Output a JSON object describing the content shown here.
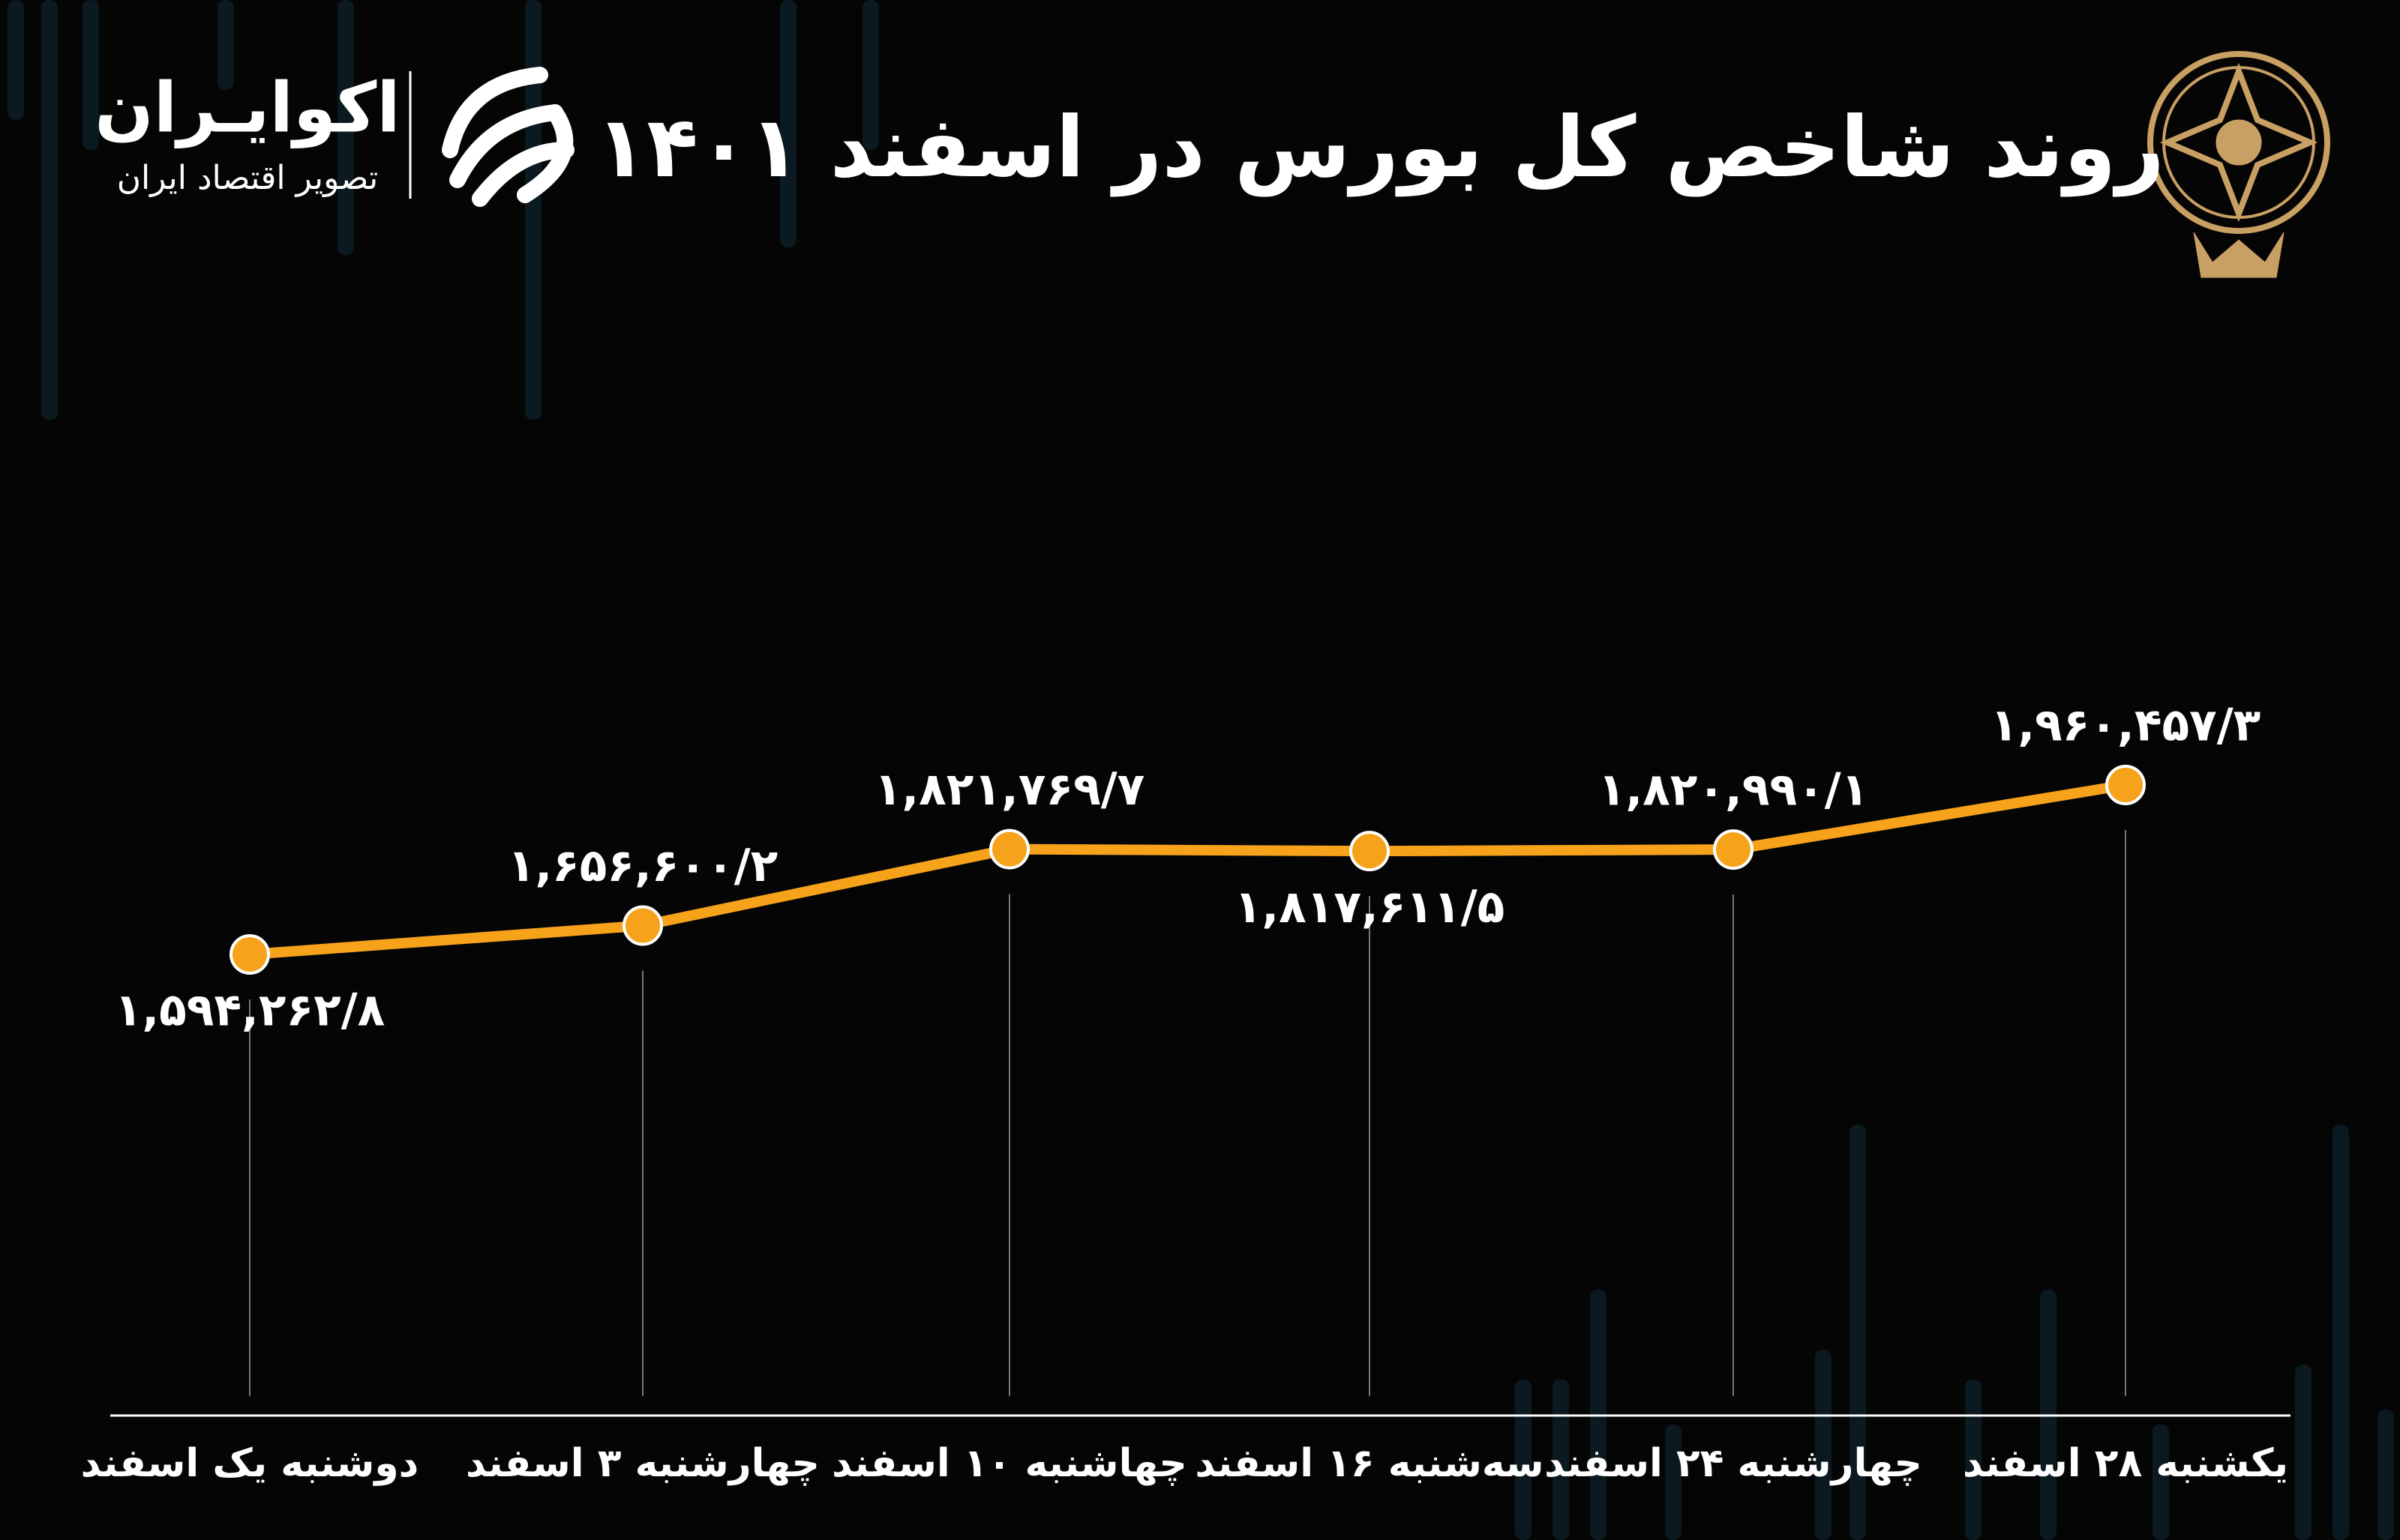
{
  "logo": {
    "name": "اکوایـران",
    "tagline": "تصویر اقتصاد ایران"
  },
  "chart_data": {
    "type": "line",
    "title": "روند شاخص کل بورس در اسفند ۱۴۰۱",
    "categories": [
      "دوشنبه یک اسفند",
      "چهارشنبه ۳ اسفند",
      "چهاشنبه ۱۰ اسفند",
      "سه‌شنبه ۱۶ اسفند",
      "چهارشنبه ۲۴ اسفند",
      "یکشنبه ۲۸ اسفند"
    ],
    "values": [
      1594262.8,
      1656600.2,
      1821769.7,
      1817611.5,
      1820990.1,
      1960457.3
    ],
    "value_labels": [
      "۱,۵۹۴,۲۶۲/۸",
      "۱,۶۵۶,۶۰۰/۲",
      "۱,۸۲۱,۷۶۹/۷",
      "۱,۸۱۷,۶۱۱/۵",
      "۱,۸۲۰,۹۹۰/۱",
      "۱,۹۶۰,۴۵۷/۳"
    ],
    "color": "#f6a21a"
  }
}
